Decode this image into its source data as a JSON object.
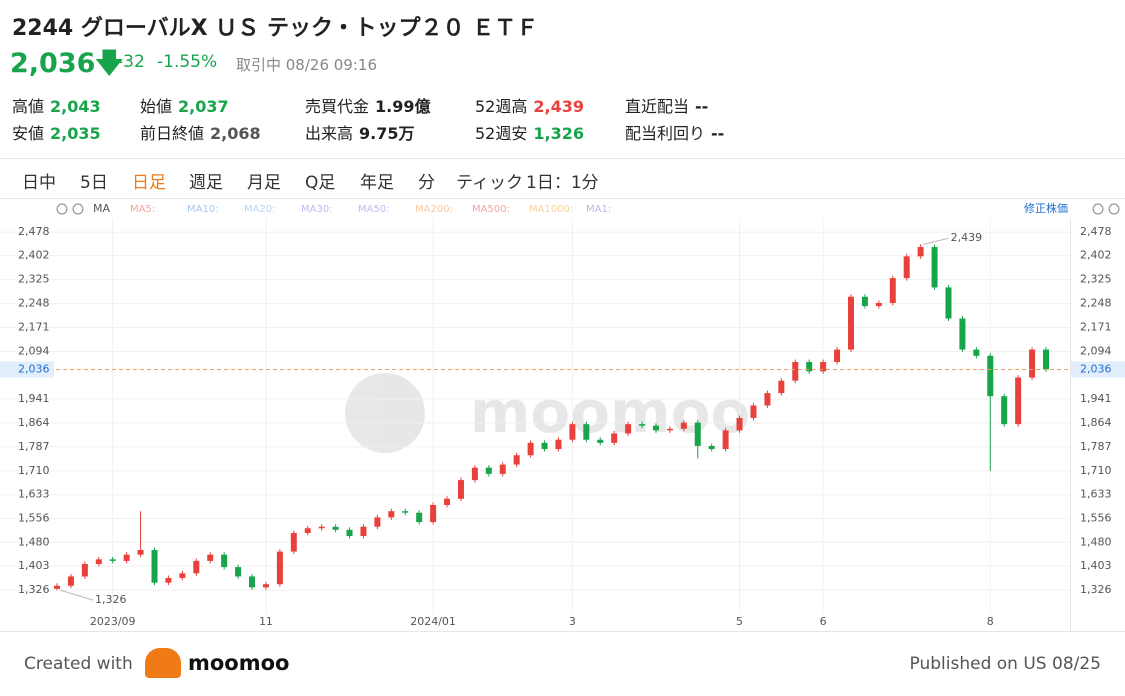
{
  "header": {
    "title": "2244 グローバルX ＵＳ テック・トップ２０ ＥＴＦ",
    "price": "2,036",
    "change": "-32",
    "change_pct": "-1.55%",
    "status": "取引中 08/26 09:16",
    "stats": [
      {
        "label": "高値",
        "value": "2,043"
      },
      {
        "label": "安値",
        "value": "2,035"
      },
      {
        "label": "始値",
        "value": "2,037"
      },
      {
        "label": "前日終値",
        "value": "2,068"
      },
      {
        "label": "売買代金",
        "value": "1.99億"
      },
      {
        "label": "出来高",
        "value": "9.75万"
      },
      {
        "label": "52週高",
        "value": "2,439"
      },
      {
        "label": "52週安",
        "value": "1,326"
      },
      {
        "label": "直近配当",
        "value": "--"
      },
      {
        "label": "配当利回り",
        "value": "--"
      }
    ]
  },
  "tabs": [
    "日中",
    "5日",
    "日足",
    "週足",
    "月足",
    "Q足",
    "年足",
    "分",
    "ティック",
    "1日：1分"
  ],
  "indicator_bar": {
    "name": "MA",
    "items": [
      "MA5:",
      "MA10:",
      "MA20:",
      "MA30:",
      "MA50:",
      "MA200:",
      "MA500:",
      "MA1000:",
      "MA1:"
    ],
    "adjust": "修正株価"
  },
  "chart_data": {
    "type": "candlestick",
    "up_color": "#e8413c",
    "down_color": "#17a44b",
    "grid": true,
    "ylim": [
      1262,
      2517
    ],
    "yticks": [
      {
        "value": 1326,
        "label": "1,326"
      },
      {
        "value": 1403,
        "label": "1,403"
      },
      {
        "value": 1480,
        "label": "1,480"
      },
      {
        "value": 1556,
        "label": "1,556"
      },
      {
        "value": 1633,
        "label": "1,633"
      },
      {
        "value": 1710,
        "label": "1,710"
      },
      {
        "value": 1787,
        "label": "1,787"
      },
      {
        "value": 1864,
        "label": "1,864"
      },
      {
        "value": 1941,
        "label": "1,941"
      },
      {
        "value": 2094,
        "label": "2,094"
      },
      {
        "value": 2171,
        "label": "2,171"
      },
      {
        "value": 2248,
        "label": "2,248"
      },
      {
        "value": 2325,
        "label": "2,325"
      },
      {
        "value": 2402,
        "label": "2,402"
      },
      {
        "value": 2478,
        "label": "2,478"
      }
    ],
    "categories": [
      null,
      null,
      null,
      null,
      "2023/09",
      null,
      null,
      null,
      null,
      null,
      null,
      null,
      null,
      null,
      null,
      "11",
      null,
      null,
      null,
      null,
      null,
      null,
      null,
      null,
      null,
      null,
      null,
      "2024/01",
      null,
      null,
      null,
      null,
      null,
      null,
      null,
      null,
      null,
      "3",
      null,
      null,
      null,
      null,
      null,
      null,
      null,
      null,
      null,
      null,
      null,
      "5",
      null,
      null,
      null,
      null,
      null,
      "6",
      null,
      null,
      null,
      null,
      null,
      null,
      null,
      null,
      null,
      null,
      null,
      "8",
      null,
      null,
      null,
      null
    ],
    "open": [
      1330,
      1340,
      1370,
      1410,
      1425,
      1420,
      1440,
      1455,
      1350,
      1365,
      1380,
      1420,
      1440,
      1400,
      1370,
      1335,
      1345,
      1450,
      1510,
      1525,
      1530,
      1520,
      1500,
      1530,
      1560,
      1580,
      1575,
      1545,
      1600,
      1620,
      1680,
      1720,
      1700,
      1730,
      1760,
      1800,
      1780,
      1810,
      1860,
      1810,
      1800,
      1830,
      1860,
      1855,
      1840,
      1845,
      1865,
      1790,
      1780,
      1840,
      1880,
      1920,
      1960,
      2000,
      2060,
      2030,
      2060,
      2100,
      2270,
      2240,
      2250,
      2330,
      2400,
      2430,
      2300,
      2200,
      2100,
      2080,
      1950,
      1860,
      2010,
      2100
    ],
    "high": [
      1348,
      1378,
      1418,
      1433,
      1433,
      1448,
      1580,
      1463,
      1373,
      1388,
      1428,
      1448,
      1448,
      1408,
      1378,
      1353,
      1458,
      1518,
      1533,
      1538,
      1538,
      1528,
      1538,
      1568,
      1588,
      1588,
      1583,
      1608,
      1628,
      1688,
      1728,
      1728,
      1738,
      1768,
      1808,
      1808,
      1818,
      1868,
      1868,
      1818,
      1838,
      1868,
      1868,
      1863,
      1853,
      1873,
      1873,
      1798,
      1848,
      1888,
      1928,
      1968,
      2008,
      2068,
      2068,
      2068,
      2108,
      2278,
      2278,
      2258,
      2338,
      2408,
      2439,
      2438,
      2308,
      2208,
      2108,
      2088,
      1958,
      2018,
      2108,
      2108
    ],
    "low": [
      1326,
      1332,
      1362,
      1402,
      1412,
      1412,
      1432,
      1342,
      1342,
      1357,
      1372,
      1412,
      1392,
      1362,
      1327,
      1327,
      1337,
      1442,
      1502,
      1517,
      1512,
      1492,
      1492,
      1522,
      1552,
      1567,
      1537,
      1537,
      1592,
      1612,
      1672,
      1692,
      1692,
      1722,
      1752,
      1772,
      1772,
      1802,
      1802,
      1792,
      1792,
      1822,
      1847,
      1832,
      1832,
      1837,
      1750,
      1772,
      1772,
      1832,
      1872,
      1912,
      1952,
      1992,
      2022,
      2022,
      2052,
      2092,
      2232,
      2232,
      2242,
      2322,
      2392,
      2292,
      2192,
      2092,
      2072,
      1710,
      1852,
      1852,
      2002,
      2028
    ],
    "close": [
      1340,
      1370,
      1410,
      1425,
      1420,
      1440,
      1455,
      1350,
      1365,
      1380,
      1420,
      1440,
      1400,
      1370,
      1335,
      1345,
      1450,
      1510,
      1525,
      1530,
      1520,
      1500,
      1530,
      1560,
      1580,
      1575,
      1545,
      1600,
      1620,
      1680,
      1720,
      1700,
      1730,
      1760,
      1800,
      1780,
      1810,
      1860,
      1810,
      1800,
      1830,
      1860,
      1855,
      1840,
      1845,
      1865,
      1790,
      1780,
      1840,
      1880,
      1920,
      1960,
      2000,
      2060,
      2030,
      2060,
      2100,
      2270,
      2240,
      2250,
      2330,
      2400,
      2430,
      2300,
      2200,
      2100,
      2080,
      1950,
      1860,
      2010,
      2100,
      2036
    ],
    "last_price": {
      "value": 2036,
      "label": "2,036"
    },
    "annotations": [
      {
        "value": 2439,
        "label": "2,439"
      },
      {
        "value": 1326,
        "label": "1,326"
      }
    ]
  },
  "footer": {
    "created": "Created with",
    "brand": "moomoo",
    "published": "Published on US 08/25"
  }
}
